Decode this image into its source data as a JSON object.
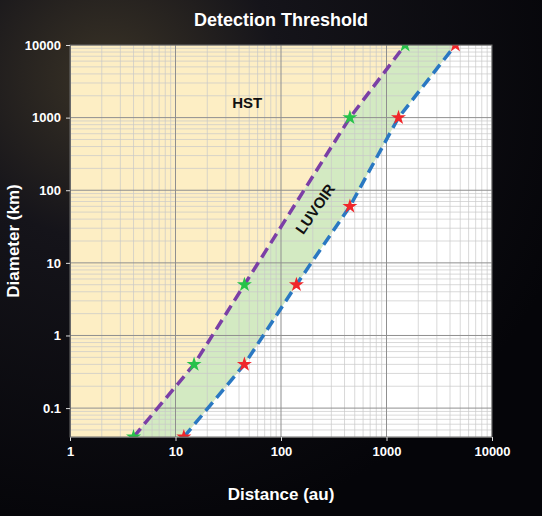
{
  "chart_data": {
    "type": "line",
    "title": "Detection Threshold",
    "x_label": "Distance (au)",
    "y_label": "Diameter (km)",
    "annotations": [
      "HST",
      "LUVOIR"
    ],
    "log": true,
    "grid": true,
    "xlim": [
      1,
      10000
    ],
    "ylim": [
      0.04,
      10000
    ],
    "xticks": [
      1,
      10,
      100,
      1000,
      10000
    ],
    "yticks": [
      0.1,
      1,
      10,
      100,
      1000,
      10000
    ],
    "series": [
      {
        "color": "#7b3fa6",
        "line_style": "dashed",
        "marker": "star",
        "x": [
          4,
          15,
          45,
          450,
          1500
        ],
        "values": [
          0.04,
          0.4,
          5,
          1000,
          10000
        ]
      },
      {
        "color": "#2a78c2",
        "line_style": "dashed",
        "marker": "star",
        "x": [
          12,
          45,
          140,
          450,
          1300,
          4500
        ],
        "values": [
          0.04,
          0.4,
          5,
          60,
          1000,
          10000
        ]
      }
    ]
  }
}
